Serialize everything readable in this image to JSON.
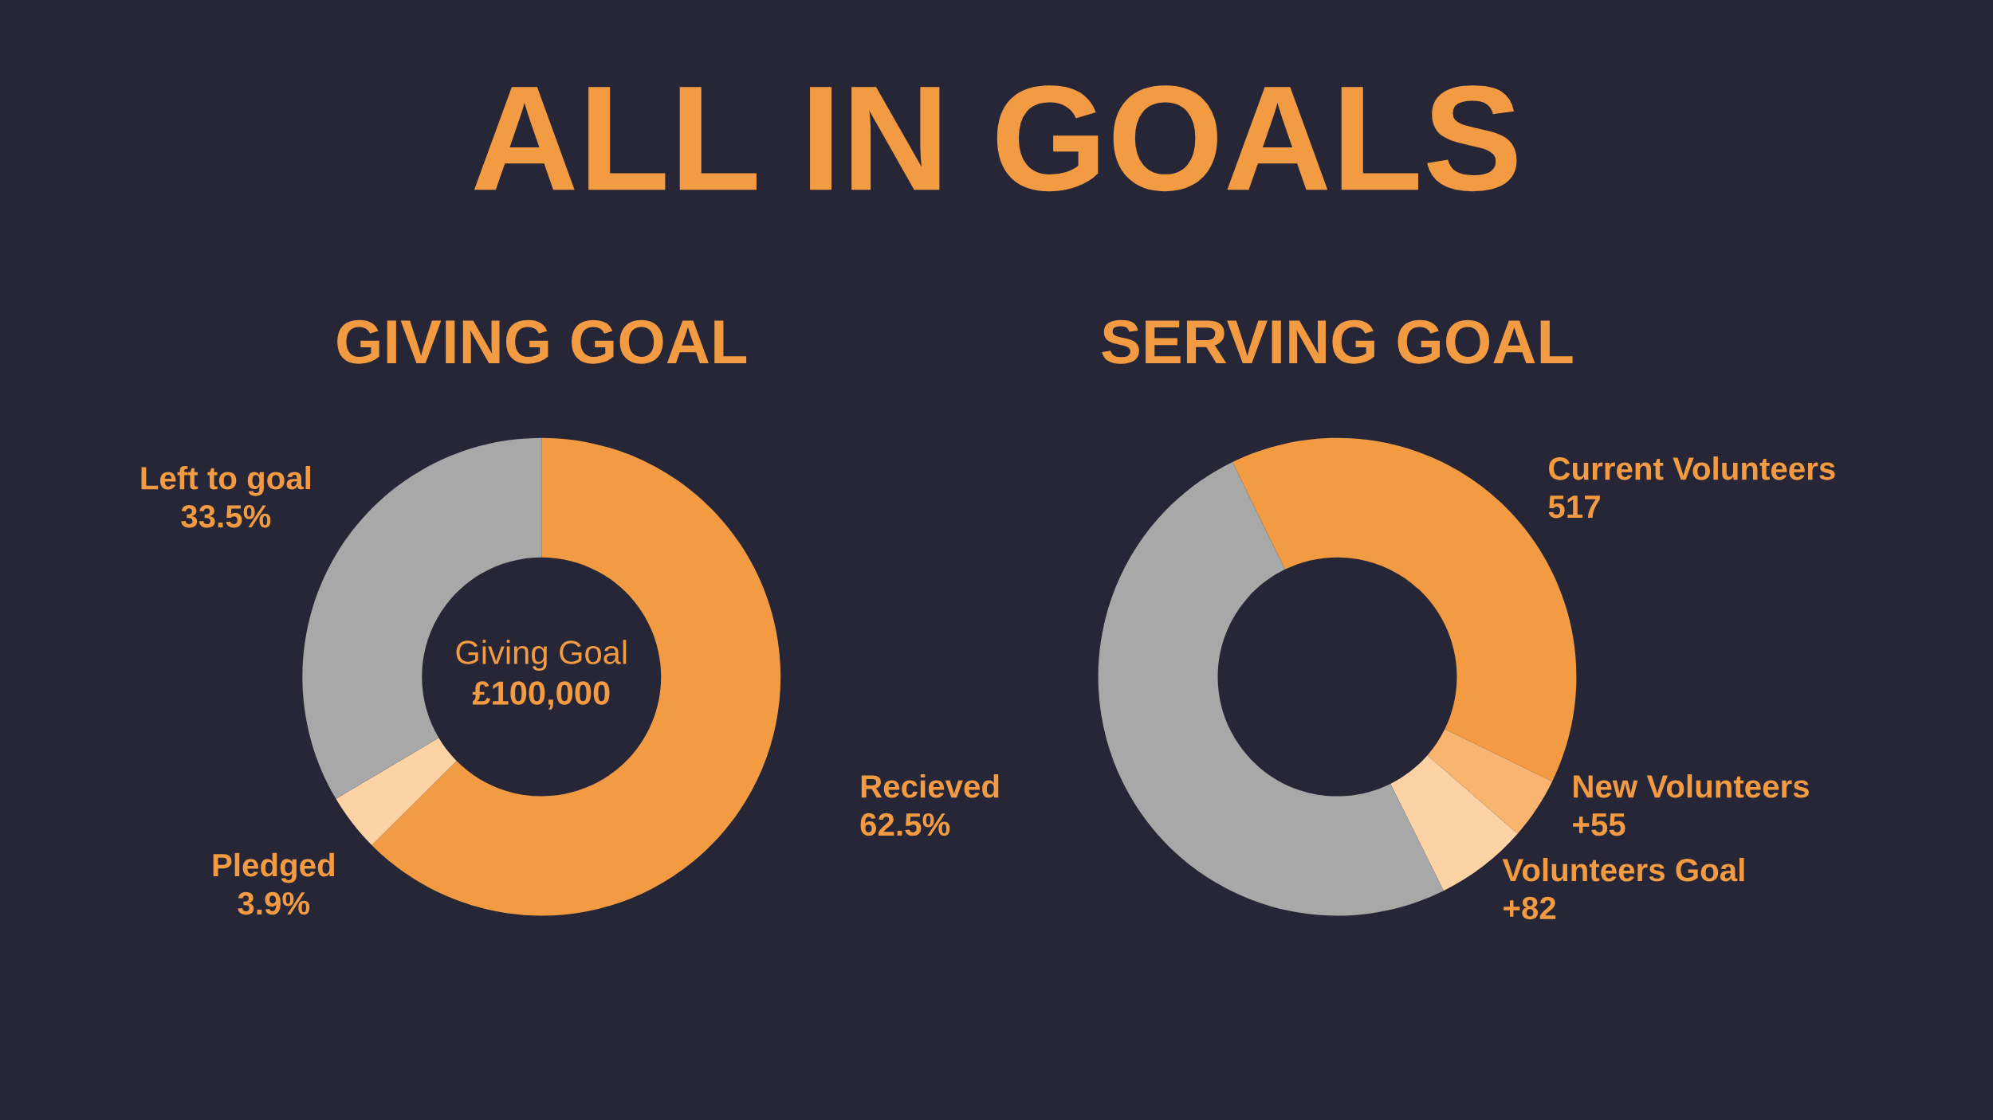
{
  "chart_data": [
    {
      "type": "donut",
      "title": "ALL IN GOALS",
      "subtitle": "GIVING GOAL",
      "categories": [
        "Recieved",
        "Pledged",
        "Left to goal"
      ],
      "values": [
        62.5,
        3.9,
        33.5
      ],
      "colors": [
        "#f29b43",
        "#fdd3a6",
        "#a8a8a8"
      ],
      "value_labels": [
        "62.5%",
        "3.9%",
        "33.5%"
      ],
      "annotations": [
        "Giving Goal",
        "£100,000"
      ]
    },
    {
      "type": "donut",
      "title": "SERVING GOAL",
      "categories": [
        "Current Volunteers",
        "New Volunteers",
        "Volunteers Goal",
        null
      ],
      "values": [
        517,
        55,
        82,
        657
      ],
      "colors": [
        "#f29b43",
        "#f9b46f",
        "#fdd3a6",
        "#a8a8a8"
      ],
      "value_labels": [
        "517",
        "+55",
        "+82",
        null
      ]
    }
  ]
}
